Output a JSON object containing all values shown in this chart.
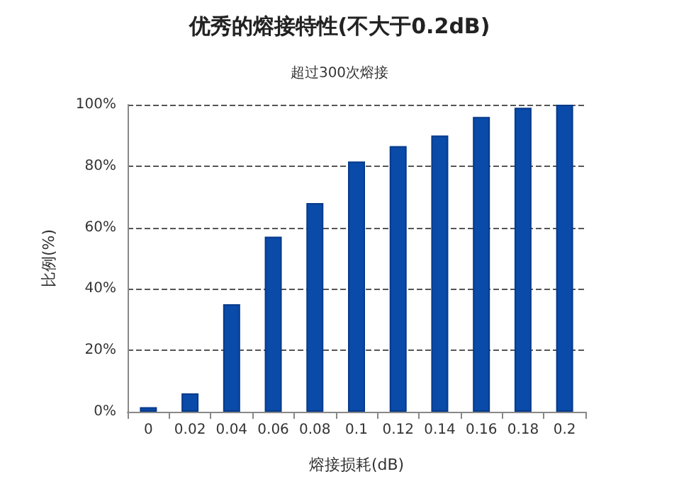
{
  "chart_data": {
    "type": "bar",
    "title": "优秀的熔接特性(不大于0.2dB)",
    "subtitle": "超过300次熔接",
    "xlabel": "熔接损耗(dB)",
    "ylabel": "比例(%)",
    "categories": [
      "0",
      "0.02",
      "0.04",
      "0.06",
      "0.08",
      "0.1",
      "0.12",
      "0.14",
      "0.16",
      "0.18",
      "0.2"
    ],
    "values": [
      1.5,
      6,
      35,
      57,
      68,
      81.5,
      86.5,
      90,
      96,
      99,
      100
    ],
    "color": "#0a4aa8",
    "ylim": [
      0,
      100
    ],
    "yticks": [
      {
        "value": 0,
        "label": "0%"
      },
      {
        "value": 20,
        "label": "20%"
      },
      {
        "value": 40,
        "label": "40%"
      },
      {
        "value": 60,
        "label": "60%"
      },
      {
        "value": 80,
        "label": "80%"
      },
      {
        "value": 100,
        "label": "100%"
      }
    ],
    "grid": "y"
  }
}
